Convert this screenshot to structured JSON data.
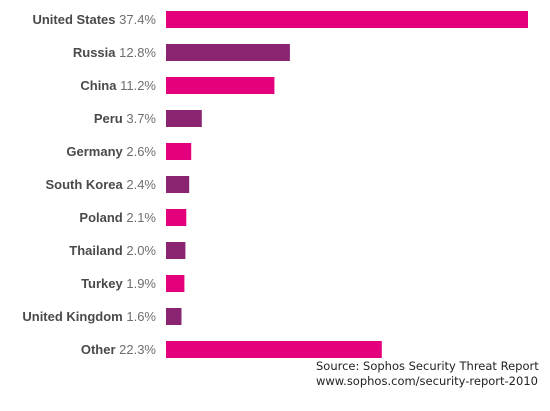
{
  "chart_data": {
    "type": "bar",
    "orientation": "horizontal",
    "unit": "%",
    "categories": [
      "United States",
      "Russia",
      "China",
      "Peru",
      "Germany",
      "South Korea",
      "Poland",
      "Thailand",
      "Turkey",
      "United Kingdom",
      "Other"
    ],
    "value_labels": [
      "37.4%",
      "12.8%",
      "11.2%",
      "3.7%",
      "2.6%",
      "2.4%",
      "2.1%",
      "2.0%",
      "1.9%",
      "1.6%",
      "22.3%"
    ],
    "values": [
      37.4,
      12.8,
      11.2,
      3.7,
      2.6,
      2.4,
      2.1,
      2.0,
      1.9,
      1.6,
      22.3
    ],
    "bar_colors": [
      "#e4007c",
      "#8a2470",
      "#e4007c",
      "#8a2470",
      "#e4007c",
      "#8a2470",
      "#e4007c",
      "#8a2470",
      "#e4007c",
      "#8a2470",
      "#e4007c"
    ],
    "xlim": [
      0,
      37.4
    ],
    "grid": false,
    "legend": "none"
  },
  "source": {
    "line1": "Source: Sophos Security Threat Report",
    "line2": "www.sophos.com/security-report-2010"
  }
}
